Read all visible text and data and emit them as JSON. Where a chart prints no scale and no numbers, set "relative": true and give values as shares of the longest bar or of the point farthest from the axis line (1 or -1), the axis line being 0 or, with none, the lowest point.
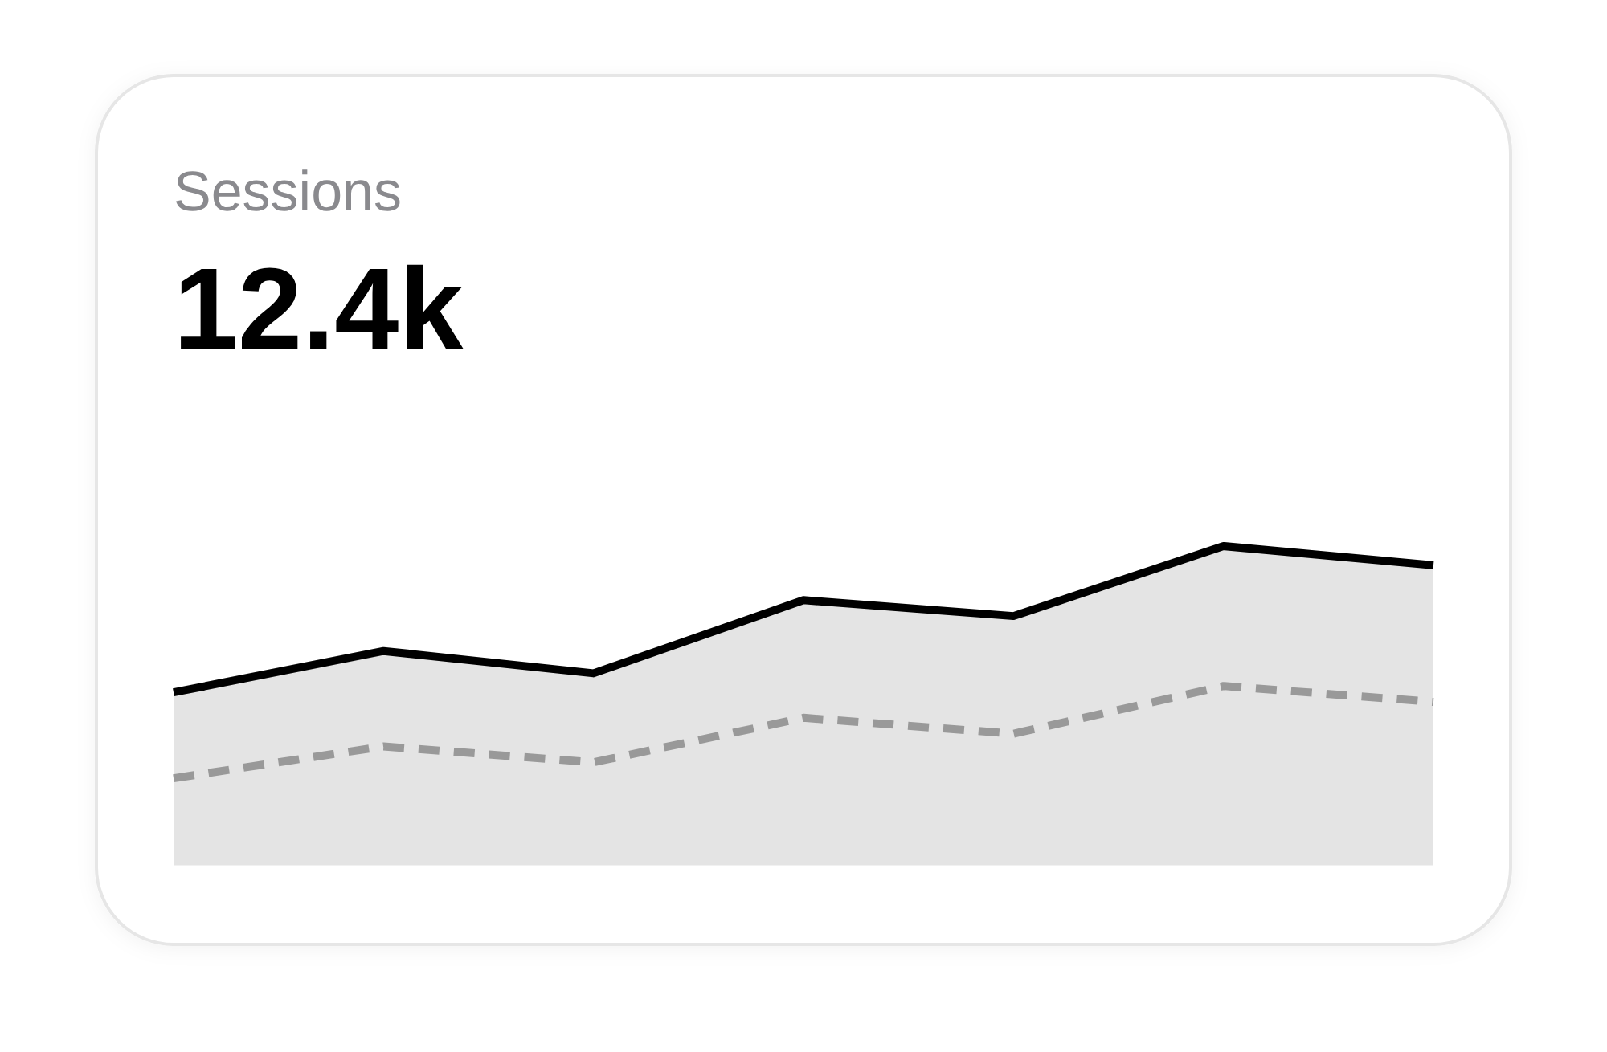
{
  "chart_data": {
    "type": "area",
    "title": "Sessions",
    "subtitle": "12.4k",
    "categories": [
      null,
      null,
      null,
      null,
      null,
      null,
      null
    ],
    "relative": true,
    "series": [
      {
        "color": "#000000",
        "values": [
          0.54,
          0.67,
          0.6,
          0.83,
          0.78,
          1,
          0.94
        ]
      },
      {
        "type": "line",
        "line_style": "dashed",
        "color": "#999999",
        "values": [
          0.27,
          0.37,
          0.32,
          0.46,
          0.41,
          0.56,
          0.51
        ]
      }
    ]
  }
}
